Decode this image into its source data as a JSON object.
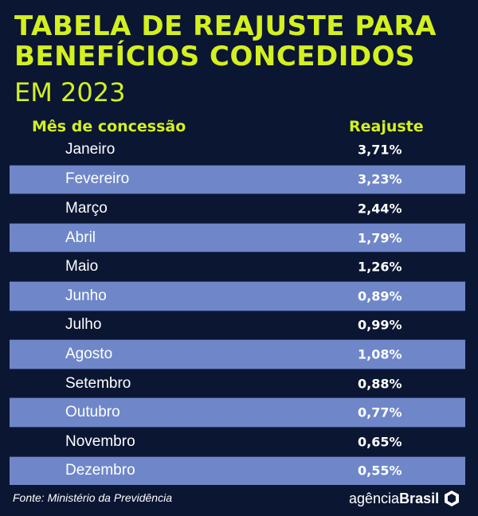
{
  "header": {
    "title_line1": "TABELA DE REAJUSTE PARA",
    "title_line2": "BENEFÍCIOS CONCEDIDOS",
    "subtitle": "EM 2023"
  },
  "chart_data": {
    "type": "table",
    "columns": [
      "Mês de concessão",
      "Reajuste"
    ],
    "rows": [
      {
        "month": "Janeiro",
        "value": "3,71%"
      },
      {
        "month": "Fevereiro",
        "value": "3,23%"
      },
      {
        "month": "Março",
        "value": "2,44%"
      },
      {
        "month": "Abril",
        "value": "1,79%"
      },
      {
        "month": "Maio",
        "value": "1,26%"
      },
      {
        "month": "Junho",
        "value": "0,89%"
      },
      {
        "month": "Julho",
        "value": "0,99%"
      },
      {
        "month": "Agosto",
        "value": "1,08%"
      },
      {
        "month": "Setembro",
        "value": "0,88%"
      },
      {
        "month": "Outubro",
        "value": "0,77%"
      },
      {
        "month": "Novembro",
        "value": "0,65%"
      },
      {
        "month": "Dezembro",
        "value": "0,55%"
      }
    ]
  },
  "footer": {
    "source": "Fonte: Ministério da Previdência",
    "brand_part1": "agência",
    "brand_part2": "Brasil"
  },
  "colors": {
    "background": "#0b1633",
    "accent": "#d4f01e",
    "row_alt": "#6f87c9"
  }
}
